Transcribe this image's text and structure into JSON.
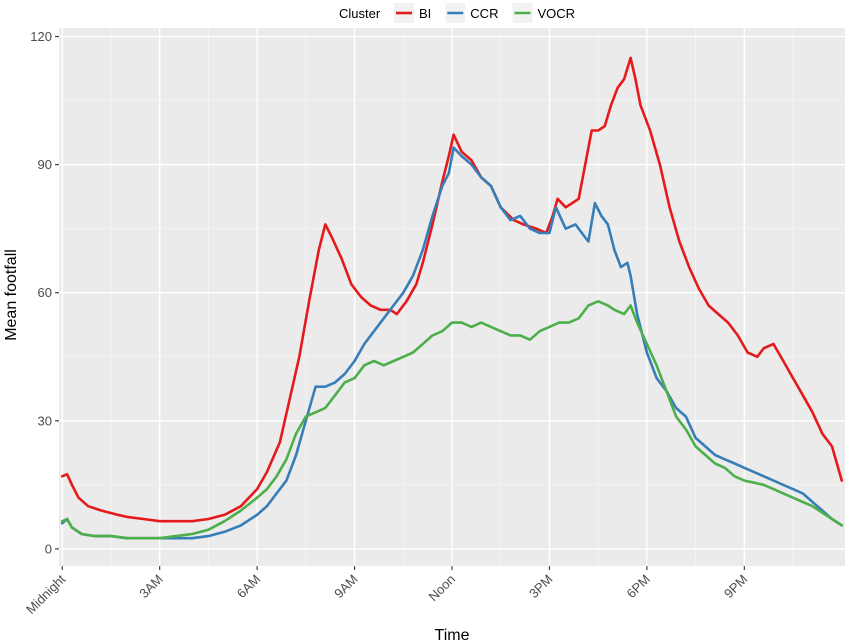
{
  "chart_data": {
    "type": "line",
    "xlabel": "Time",
    "ylabel": "Mean footfall",
    "x_ticks": [
      {
        "label": "Midnight",
        "hour": 0
      },
      {
        "label": "3AM",
        "hour": 3
      },
      {
        "label": "6AM",
        "hour": 6
      },
      {
        "label": "9AM",
        "hour": 9
      },
      {
        "label": "Noon",
        "hour": 12
      },
      {
        "label": "3PM",
        "hour": 15
      },
      {
        "label": "6PM",
        "hour": 18
      },
      {
        "label": "9PM",
        "hour": 21
      }
    ],
    "xlim": [
      -0.1,
      24.1
    ],
    "ylim": [
      -4,
      122
    ],
    "y_ticks": [
      0,
      30,
      60,
      90,
      120
    ],
    "grid": true,
    "legend": {
      "title": "Cluster",
      "position": "top"
    },
    "series": [
      {
        "name": "BI",
        "color": "#e41a1c",
        "points": [
          [
            0,
            17
          ],
          [
            0.15,
            17.5
          ],
          [
            0.3,
            15
          ],
          [
            0.5,
            12
          ],
          [
            0.8,
            10
          ],
          [
            1.2,
            9
          ],
          [
            1.7,
            8
          ],
          [
            2,
            7.5
          ],
          [
            2.5,
            7
          ],
          [
            3,
            6.5
          ],
          [
            3.5,
            6.5
          ],
          [
            4,
            6.5
          ],
          [
            4.5,
            7
          ],
          [
            5,
            8
          ],
          [
            5.5,
            10
          ],
          [
            6,
            14
          ],
          [
            6.3,
            18
          ],
          [
            6.7,
            25
          ],
          [
            7.0,
            35
          ],
          [
            7.3,
            45
          ],
          [
            7.6,
            58
          ],
          [
            7.9,
            70
          ],
          [
            8.1,
            76
          ],
          [
            8.3,
            73
          ],
          [
            8.6,
            68
          ],
          [
            8.9,
            62
          ],
          [
            9.2,
            59
          ],
          [
            9.5,
            57
          ],
          [
            9.8,
            56
          ],
          [
            10.1,
            56
          ],
          [
            10.3,
            55
          ],
          [
            10.6,
            58
          ],
          [
            10.9,
            62
          ],
          [
            11.1,
            67
          ],
          [
            11.4,
            76
          ],
          [
            11.7,
            86
          ],
          [
            11.9,
            92
          ],
          [
            12.05,
            97
          ],
          [
            12.3,
            93
          ],
          [
            12.6,
            91
          ],
          [
            12.9,
            87
          ],
          [
            13.2,
            85
          ],
          [
            13.5,
            80
          ],
          [
            13.9,
            77
          ],
          [
            14.2,
            76
          ],
          [
            14.6,
            75
          ],
          [
            14.9,
            74
          ],
          [
            15.1,
            78
          ],
          [
            15.25,
            82
          ],
          [
            15.5,
            80
          ],
          [
            15.7,
            81
          ],
          [
            15.9,
            82
          ],
          [
            16.1,
            90
          ],
          [
            16.3,
            98
          ],
          [
            16.5,
            98
          ],
          [
            16.7,
            99
          ],
          [
            16.9,
            104
          ],
          [
            17.1,
            108
          ],
          [
            17.3,
            110
          ],
          [
            17.5,
            115
          ],
          [
            17.65,
            110
          ],
          [
            17.8,
            104
          ],
          [
            18.1,
            98
          ],
          [
            18.4,
            90
          ],
          [
            18.7,
            80
          ],
          [
            19.0,
            72
          ],
          [
            19.3,
            66
          ],
          [
            19.6,
            61
          ],
          [
            19.9,
            57
          ],
          [
            20.2,
            55
          ],
          [
            20.5,
            53
          ],
          [
            20.8,
            50
          ],
          [
            21.1,
            46
          ],
          [
            21.4,
            45
          ],
          [
            21.6,
            47
          ],
          [
            21.9,
            48
          ],
          [
            22.2,
            44
          ],
          [
            22.5,
            40
          ],
          [
            22.8,
            36
          ],
          [
            23.1,
            32
          ],
          [
            23.4,
            27
          ],
          [
            23.7,
            24
          ],
          [
            24,
            16
          ]
        ]
      },
      {
        "name": "CCR",
        "color": "#377eb8",
        "points": [
          [
            0,
            6
          ],
          [
            0.15,
            7
          ],
          [
            0.3,
            5
          ],
          [
            0.6,
            3.5
          ],
          [
            1,
            3
          ],
          [
            1.5,
            3
          ],
          [
            2,
            2.5
          ],
          [
            2.5,
            2.5
          ],
          [
            3,
            2.5
          ],
          [
            3.5,
            2.5
          ],
          [
            4,
            2.5
          ],
          [
            4.5,
            3
          ],
          [
            5,
            4
          ],
          [
            5.5,
            5.5
          ],
          [
            6,
            8
          ],
          [
            6.3,
            10
          ],
          [
            6.6,
            13
          ],
          [
            6.9,
            16
          ],
          [
            7.2,
            22
          ],
          [
            7.5,
            30
          ],
          [
            7.8,
            38
          ],
          [
            8.1,
            38
          ],
          [
            8.4,
            39
          ],
          [
            8.7,
            41
          ],
          [
            9.0,
            44
          ],
          [
            9.3,
            48
          ],
          [
            9.6,
            51
          ],
          [
            9.9,
            54
          ],
          [
            10.2,
            57
          ],
          [
            10.5,
            60
          ],
          [
            10.8,
            64
          ],
          [
            11.1,
            70
          ],
          [
            11.4,
            78
          ],
          [
            11.7,
            85
          ],
          [
            11.9,
            88
          ],
          [
            12.05,
            94
          ],
          [
            12.3,
            92
          ],
          [
            12.6,
            90
          ],
          [
            12.9,
            87
          ],
          [
            13.2,
            85
          ],
          [
            13.5,
            80
          ],
          [
            13.8,
            77
          ],
          [
            14.1,
            78
          ],
          [
            14.4,
            75
          ],
          [
            14.7,
            74
          ],
          [
            15.0,
            74
          ],
          [
            15.2,
            80
          ],
          [
            15.5,
            75
          ],
          [
            15.8,
            76
          ],
          [
            16.0,
            74
          ],
          [
            16.2,
            72
          ],
          [
            16.4,
            81
          ],
          [
            16.6,
            78
          ],
          [
            16.8,
            76
          ],
          [
            17.0,
            70
          ],
          [
            17.2,
            66
          ],
          [
            17.4,
            67
          ],
          [
            17.5,
            64
          ],
          [
            17.7,
            55
          ],
          [
            18.0,
            46
          ],
          [
            18.3,
            40
          ],
          [
            18.6,
            37
          ],
          [
            18.9,
            33
          ],
          [
            19.2,
            31
          ],
          [
            19.5,
            26
          ],
          [
            19.8,
            24
          ],
          [
            20.1,
            22
          ],
          [
            20.4,
            21
          ],
          [
            20.7,
            20
          ],
          [
            21.0,
            19
          ],
          [
            21.3,
            18
          ],
          [
            21.6,
            17
          ],
          [
            21.9,
            16
          ],
          [
            22.2,
            15
          ],
          [
            22.5,
            14
          ],
          [
            22.8,
            13
          ],
          [
            23.1,
            11
          ],
          [
            23.4,
            9
          ],
          [
            23.7,
            7
          ],
          [
            24,
            5.5
          ]
        ]
      },
      {
        "name": "VOCR",
        "color": "#4daf4a",
        "points": [
          [
            0,
            6.5
          ],
          [
            0.15,
            7
          ],
          [
            0.3,
            5
          ],
          [
            0.6,
            3.5
          ],
          [
            1,
            3
          ],
          [
            1.5,
            3
          ],
          [
            2,
            2.5
          ],
          [
            2.5,
            2.5
          ],
          [
            3,
            2.5
          ],
          [
            3.5,
            3
          ],
          [
            4,
            3.5
          ],
          [
            4.5,
            4.5
          ],
          [
            5,
            6.5
          ],
          [
            5.5,
            9
          ],
          [
            6,
            12
          ],
          [
            6.3,
            14
          ],
          [
            6.6,
            17
          ],
          [
            6.9,
            21
          ],
          [
            7.2,
            27
          ],
          [
            7.5,
            31
          ],
          [
            7.8,
            32
          ],
          [
            8.1,
            33
          ],
          [
            8.4,
            36
          ],
          [
            8.7,
            39
          ],
          [
            9.0,
            40
          ],
          [
            9.3,
            43
          ],
          [
            9.6,
            44
          ],
          [
            9.9,
            43
          ],
          [
            10.2,
            44
          ],
          [
            10.5,
            45
          ],
          [
            10.8,
            46
          ],
          [
            11.1,
            48
          ],
          [
            11.4,
            50
          ],
          [
            11.7,
            51
          ],
          [
            12.0,
            53
          ],
          [
            12.3,
            53
          ],
          [
            12.6,
            52
          ],
          [
            12.9,
            53
          ],
          [
            13.2,
            52
          ],
          [
            13.5,
            51
          ],
          [
            13.8,
            50
          ],
          [
            14.1,
            50
          ],
          [
            14.4,
            49
          ],
          [
            14.7,
            51
          ],
          [
            15.0,
            52
          ],
          [
            15.3,
            53
          ],
          [
            15.6,
            53
          ],
          [
            15.9,
            54
          ],
          [
            16.2,
            57
          ],
          [
            16.5,
            58
          ],
          [
            16.8,
            57
          ],
          [
            17.0,
            56
          ],
          [
            17.3,
            55
          ],
          [
            17.5,
            57
          ],
          [
            17.7,
            53
          ],
          [
            18.0,
            48
          ],
          [
            18.3,
            43
          ],
          [
            18.6,
            37
          ],
          [
            18.9,
            31
          ],
          [
            19.2,
            28
          ],
          [
            19.5,
            24
          ],
          [
            19.8,
            22
          ],
          [
            20.1,
            20
          ],
          [
            20.4,
            19
          ],
          [
            20.7,
            17
          ],
          [
            21.0,
            16
          ],
          [
            21.3,
            15.5
          ],
          [
            21.6,
            15
          ],
          [
            21.9,
            14
          ],
          [
            22.2,
            13
          ],
          [
            22.5,
            12
          ],
          [
            22.8,
            11
          ],
          [
            23.1,
            10
          ],
          [
            23.4,
            8.5
          ],
          [
            23.7,
            7
          ],
          [
            24,
            5.5
          ]
        ]
      }
    ]
  }
}
